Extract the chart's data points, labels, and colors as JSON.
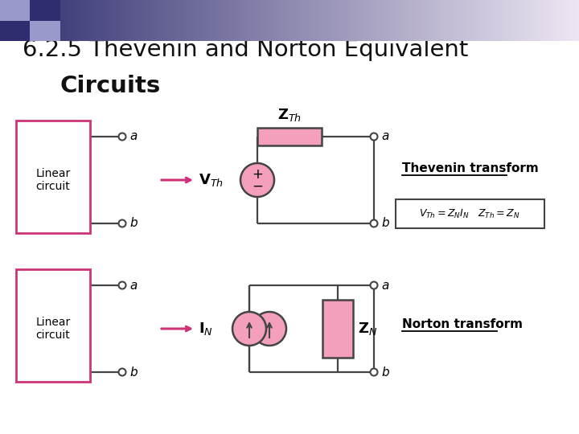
{
  "title_line1": "6.2.5 Thevenin and Norton Equivalent",
  "title_line2": "Circuits",
  "bg_color": "#ffffff",
  "pink_color": "#cc3377",
  "pink_fill": "#f4a0bc",
  "gray_line": "#444444",
  "thevenin_label": "Thevenin transform",
  "norton_label": "Norton transform",
  "header_left_dark": "#2e2e6e",
  "header_left_mid": "#8888bb",
  "header_right": "#d0d0e8",
  "sq_dark": "#2e2e6e",
  "sq_light": "#9999cc"
}
